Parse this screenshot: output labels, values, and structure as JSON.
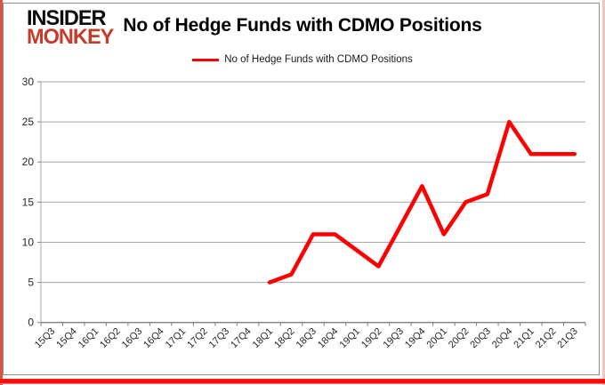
{
  "logo": {
    "line1": "INSIDER",
    "line2": "MONKEY"
  },
  "title": "No of Hedge Funds with CDMO Positions",
  "legend": {
    "label": "No of Hedge Funds with CDMO Positions",
    "color": "#ff0000"
  },
  "colors": {
    "line": "#ff0000",
    "gridline": "#a6a6a6",
    "axis": "#808080",
    "tick_label": "#262626",
    "chart_border": "#8c8c8c",
    "frame_red": "#f40505"
  },
  "chart_data": {
    "type": "line",
    "title": "No of Hedge Funds with CDMO Positions",
    "categories": [
      "15Q3",
      "15Q4",
      "16Q1",
      "16Q2",
      "16Q3",
      "16Q4",
      "17Q1",
      "17Q2",
      "17Q3",
      "17Q4",
      "18Q1",
      "18Q2",
      "18Q3",
      "18Q4",
      "19Q1",
      "19Q2",
      "19Q3",
      "19Q4",
      "20Q1",
      "20Q2",
      "20Q3",
      "20Q4",
      "21Q1",
      "21Q2",
      "21Q3"
    ],
    "series": [
      {
        "name": "No of Hedge Funds with CDMO Positions",
        "color": "#ff0000",
        "values": [
          null,
          null,
          null,
          null,
          null,
          null,
          null,
          null,
          null,
          null,
          5,
          6,
          11,
          11,
          9,
          7,
          12,
          17,
          11,
          15,
          16,
          25,
          21,
          21,
          21
        ]
      }
    ],
    "xlabel": "",
    "ylabel": "",
    "ylim": [
      0,
      30
    ],
    "yticks": [
      0,
      5,
      10,
      15,
      20,
      25,
      30
    ],
    "grid": true,
    "legend_position": "top-center"
  }
}
